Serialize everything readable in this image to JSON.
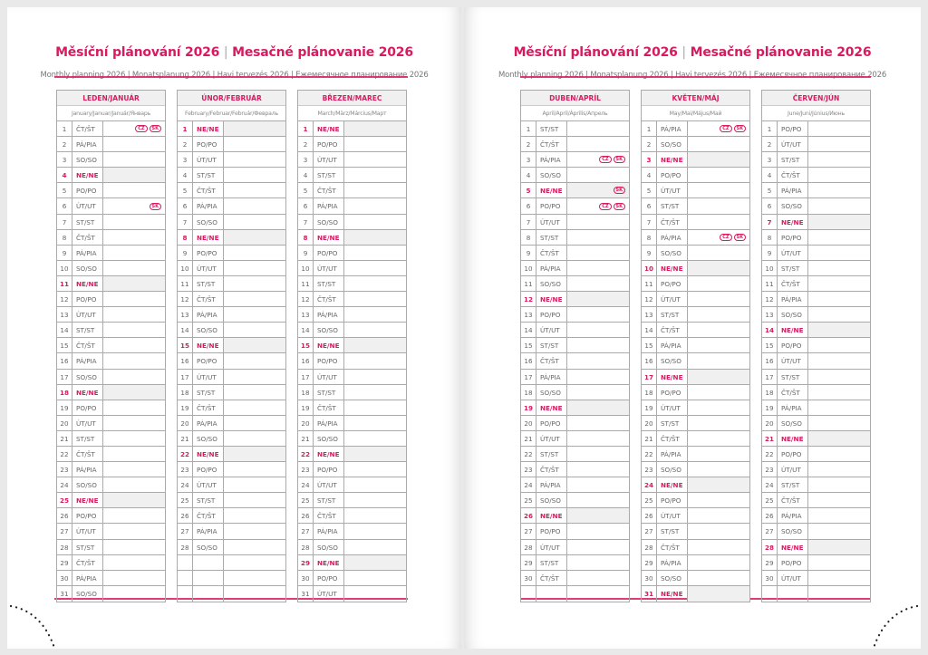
{
  "title": {
    "cz": "Měsíční plánování 2026",
    "separator": "|",
    "sk": "Mesačné plánovanie 2026"
  },
  "subtitle": "Monthly planning 2026 | Monatsplanung 2026 | Havi tervezés 2026 | Ежемесячное планирование 2026",
  "accent_color": "#d81b60",
  "months": [
    {
      "name": "LEDEN/JANUÁR",
      "sub": "January/Januar/Január/Январь",
      "holidays": {
        "1": [
          "CZ",
          "SK"
        ],
        "6": [
          "SK"
        ]
      },
      "days": [
        [
          1,
          "ČT/ŠT"
        ],
        [
          2,
          "PÁ/PIA"
        ],
        [
          3,
          "SO/SO"
        ],
        [
          4,
          "NE/NE"
        ],
        [
          5,
          "PO/PO"
        ],
        [
          6,
          "ÚT/UT"
        ],
        [
          7,
          "ST/ST"
        ],
        [
          8,
          "ČT/ŠT"
        ],
        [
          9,
          "PÁ/PIA"
        ],
        [
          10,
          "SO/SO"
        ],
        [
          11,
          "NE/NE"
        ],
        [
          12,
          "PO/PO"
        ],
        [
          13,
          "ÚT/UT"
        ],
        [
          14,
          "ST/ST"
        ],
        [
          15,
          "ČT/ŠT"
        ],
        [
          16,
          "PÁ/PIA"
        ],
        [
          17,
          "SO/SO"
        ],
        [
          18,
          "NE/NE"
        ],
        [
          19,
          "PO/PO"
        ],
        [
          20,
          "ÚT/UT"
        ],
        [
          21,
          "ST/ST"
        ],
        [
          22,
          "ČT/ŠT"
        ],
        [
          23,
          "PÁ/PIA"
        ],
        [
          24,
          "SO/SO"
        ],
        [
          25,
          "NE/NE"
        ],
        [
          26,
          "PO/PO"
        ],
        [
          27,
          "ÚT/UT"
        ],
        [
          28,
          "ST/ST"
        ],
        [
          29,
          "ČT/ŠT"
        ],
        [
          30,
          "PÁ/PIA"
        ],
        [
          31,
          "SO/SO"
        ]
      ]
    },
    {
      "name": "ÚNOR/FEBRUÁR",
      "sub": "February/Februar/Február/Февраль",
      "holidays": {},
      "days": [
        [
          1,
          "NE/NE"
        ],
        [
          2,
          "PO/PO"
        ],
        [
          3,
          "ÚT/UT"
        ],
        [
          4,
          "ST/ST"
        ],
        [
          5,
          "ČT/ŠT"
        ],
        [
          6,
          "PÁ/PIA"
        ],
        [
          7,
          "SO/SO"
        ],
        [
          8,
          "NE/NE"
        ],
        [
          9,
          "PO/PO"
        ],
        [
          10,
          "ÚT/UT"
        ],
        [
          11,
          "ST/ST"
        ],
        [
          12,
          "ČT/ŠT"
        ],
        [
          13,
          "PÁ/PIA"
        ],
        [
          14,
          "SO/SO"
        ],
        [
          15,
          "NE/NE"
        ],
        [
          16,
          "PO/PO"
        ],
        [
          17,
          "ÚT/UT"
        ],
        [
          18,
          "ST/ST"
        ],
        [
          19,
          "ČT/ŠT"
        ],
        [
          20,
          "PÁ/PIA"
        ],
        [
          21,
          "SO/SO"
        ],
        [
          22,
          "NE/NE"
        ],
        [
          23,
          "PO/PO"
        ],
        [
          24,
          "ÚT/UT"
        ],
        [
          25,
          "ST/ST"
        ],
        [
          26,
          "ČT/ŠT"
        ],
        [
          27,
          "PÁ/PIA"
        ],
        [
          28,
          "SO/SO"
        ]
      ]
    },
    {
      "name": "BŘEZEN/MAREC",
      "sub": "March/März/Március/Март",
      "holidays": {},
      "days": [
        [
          1,
          "NE/NE"
        ],
        [
          2,
          "PO/PO"
        ],
        [
          3,
          "ÚT/UT"
        ],
        [
          4,
          "ST/ST"
        ],
        [
          5,
          "ČT/ŠT"
        ],
        [
          6,
          "PÁ/PIA"
        ],
        [
          7,
          "SO/SO"
        ],
        [
          8,
          "NE/NE"
        ],
        [
          9,
          "PO/PO"
        ],
        [
          10,
          "ÚT/UT"
        ],
        [
          11,
          "ST/ST"
        ],
        [
          12,
          "ČT/ŠT"
        ],
        [
          13,
          "PÁ/PIA"
        ],
        [
          14,
          "SO/SO"
        ],
        [
          15,
          "NE/NE"
        ],
        [
          16,
          "PO/PO"
        ],
        [
          17,
          "ÚT/UT"
        ],
        [
          18,
          "ST/ST"
        ],
        [
          19,
          "ČT/ŠT"
        ],
        [
          20,
          "PÁ/PIA"
        ],
        [
          21,
          "SO/SO"
        ],
        [
          22,
          "NE/NE"
        ],
        [
          23,
          "PO/PO"
        ],
        [
          24,
          "ÚT/UT"
        ],
        [
          25,
          "ST/ST"
        ],
        [
          26,
          "ČT/ŠT"
        ],
        [
          27,
          "PÁ/PIA"
        ],
        [
          28,
          "SO/SO"
        ],
        [
          29,
          "NE/NE"
        ],
        [
          30,
          "PO/PO"
        ],
        [
          31,
          "ÚT/UT"
        ]
      ]
    },
    {
      "name": "DUBEN/APRÍL",
      "sub": "April/April/Április/Апрель",
      "holidays": {
        "3": [
          "CZ",
          "SK"
        ],
        "5": [
          "SK"
        ],
        "6": [
          "CZ",
          "SK"
        ]
      },
      "days": [
        [
          1,
          "ST/ST"
        ],
        [
          2,
          "ČT/ŠT"
        ],
        [
          3,
          "PÁ/PIA"
        ],
        [
          4,
          "SO/SO"
        ],
        [
          5,
          "NE/NE"
        ],
        [
          6,
          "PO/PO"
        ],
        [
          7,
          "ÚT/UT"
        ],
        [
          8,
          "ST/ST"
        ],
        [
          9,
          "ČT/ŠT"
        ],
        [
          10,
          "PÁ/PIA"
        ],
        [
          11,
          "SO/SO"
        ],
        [
          12,
          "NE/NE"
        ],
        [
          13,
          "PO/PO"
        ],
        [
          14,
          "ÚT/UT"
        ],
        [
          15,
          "ST/ST"
        ],
        [
          16,
          "ČT/ŠT"
        ],
        [
          17,
          "PÁ/PIA"
        ],
        [
          18,
          "SO/SO"
        ],
        [
          19,
          "NE/NE"
        ],
        [
          20,
          "PO/PO"
        ],
        [
          21,
          "ÚT/UT"
        ],
        [
          22,
          "ST/ST"
        ],
        [
          23,
          "ČT/ŠT"
        ],
        [
          24,
          "PÁ/PIA"
        ],
        [
          25,
          "SO/SO"
        ],
        [
          26,
          "NE/NE"
        ],
        [
          27,
          "PO/PO"
        ],
        [
          28,
          "ÚT/UT"
        ],
        [
          29,
          "ST/ST"
        ],
        [
          30,
          "ČT/ŠT"
        ]
      ]
    },
    {
      "name": "KVĚTEN/MÁJ",
      "sub": "May/Mai/Május/Май",
      "holidays": {
        "1": [
          "CZ",
          "SK"
        ],
        "8": [
          "CZ",
          "SK"
        ]
      },
      "days": [
        [
          1,
          "PÁ/PIA"
        ],
        [
          2,
          "SO/SO"
        ],
        [
          3,
          "NE/NE"
        ],
        [
          4,
          "PO/PO"
        ],
        [
          5,
          "ÚT/UT"
        ],
        [
          6,
          "ST/ST"
        ],
        [
          7,
          "ČT/ŠT"
        ],
        [
          8,
          "PÁ/PIA"
        ],
        [
          9,
          "SO/SO"
        ],
        [
          10,
          "NE/NE"
        ],
        [
          11,
          "PO/PO"
        ],
        [
          12,
          "ÚT/UT"
        ],
        [
          13,
          "ST/ST"
        ],
        [
          14,
          "ČT/ŠT"
        ],
        [
          15,
          "PÁ/PIA"
        ],
        [
          16,
          "SO/SO"
        ],
        [
          17,
          "NE/NE"
        ],
        [
          18,
          "PO/PO"
        ],
        [
          19,
          "ÚT/UT"
        ],
        [
          20,
          "ST/ST"
        ],
        [
          21,
          "ČT/ŠT"
        ],
        [
          22,
          "PÁ/PIA"
        ],
        [
          23,
          "SO/SO"
        ],
        [
          24,
          "NE/NE"
        ],
        [
          25,
          "PO/PO"
        ],
        [
          26,
          "ÚT/UT"
        ],
        [
          27,
          "ST/ST"
        ],
        [
          28,
          "ČT/ŠT"
        ],
        [
          29,
          "PÁ/PIA"
        ],
        [
          30,
          "SO/SO"
        ],
        [
          31,
          "NE/NE"
        ]
      ]
    },
    {
      "name": "ČERVEN/JÚN",
      "sub": "June/Juni/Június/Июнь",
      "holidays": {},
      "days": [
        [
          1,
          "PO/PO"
        ],
        [
          2,
          "ÚT/UT"
        ],
        [
          3,
          "ST/ST"
        ],
        [
          4,
          "ČT/ŠT"
        ],
        [
          5,
          "PÁ/PIA"
        ],
        [
          6,
          "SO/SO"
        ],
        [
          7,
          "NE/NE"
        ],
        [
          8,
          "PO/PO"
        ],
        [
          9,
          "ÚT/UT"
        ],
        [
          10,
          "ST/ST"
        ],
        [
          11,
          "ČT/ŠT"
        ],
        [
          12,
          "PÁ/PIA"
        ],
        [
          13,
          "SO/SO"
        ],
        [
          14,
          "NE/NE"
        ],
        [
          15,
          "PO/PO"
        ],
        [
          16,
          "ÚT/UT"
        ],
        [
          17,
          "ST/ST"
        ],
        [
          18,
          "ČT/ŠT"
        ],
        [
          19,
          "PÁ/PIA"
        ],
        [
          20,
          "SO/SO"
        ],
        [
          21,
          "NE/NE"
        ],
        [
          22,
          "PO/PO"
        ],
        [
          23,
          "ÚT/UT"
        ],
        [
          24,
          "ST/ST"
        ],
        [
          25,
          "ČT/ŠT"
        ],
        [
          26,
          "PÁ/PIA"
        ],
        [
          27,
          "SO/SO"
        ],
        [
          28,
          "NE/NE"
        ],
        [
          29,
          "PO/PO"
        ],
        [
          30,
          "ÚT/UT"
        ]
      ]
    }
  ]
}
